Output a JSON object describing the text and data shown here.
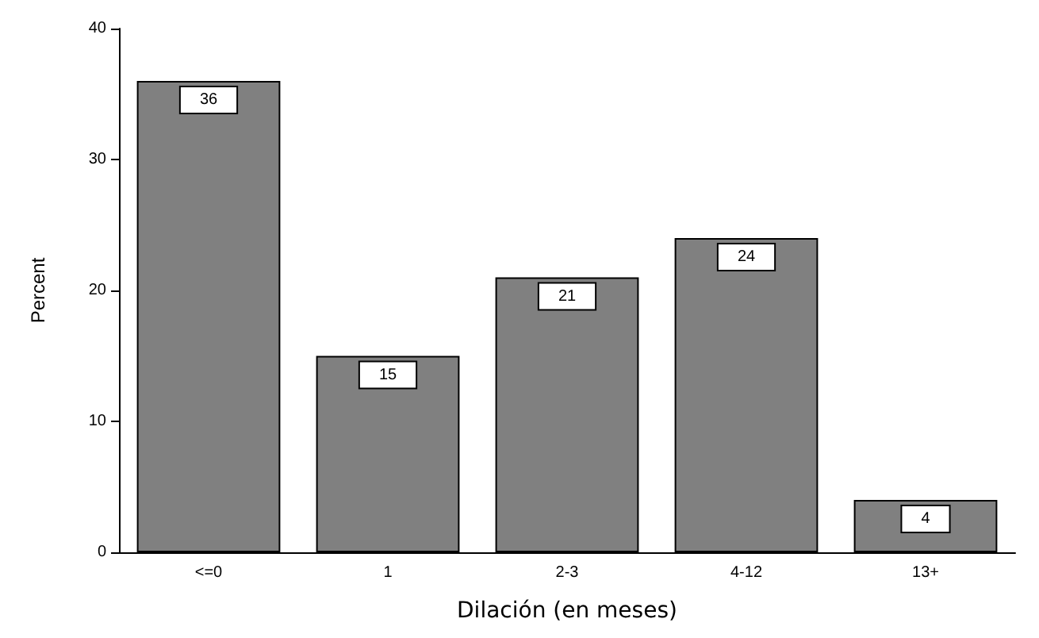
{
  "chart_data": {
    "type": "bar",
    "xlabel": "Dilación (en meses)",
    "ylabel": "Percent",
    "categories": [
      "<=0",
      "1",
      "2-3",
      "4-12",
      "13+"
    ],
    "values": [
      36,
      15,
      21,
      24,
      4
    ],
    "color": "#808080",
    "ylim": [
      0,
      40
    ],
    "yticks": [
      0,
      10,
      20,
      30,
      40
    ],
    "grid": false,
    "data_labels": true
  }
}
